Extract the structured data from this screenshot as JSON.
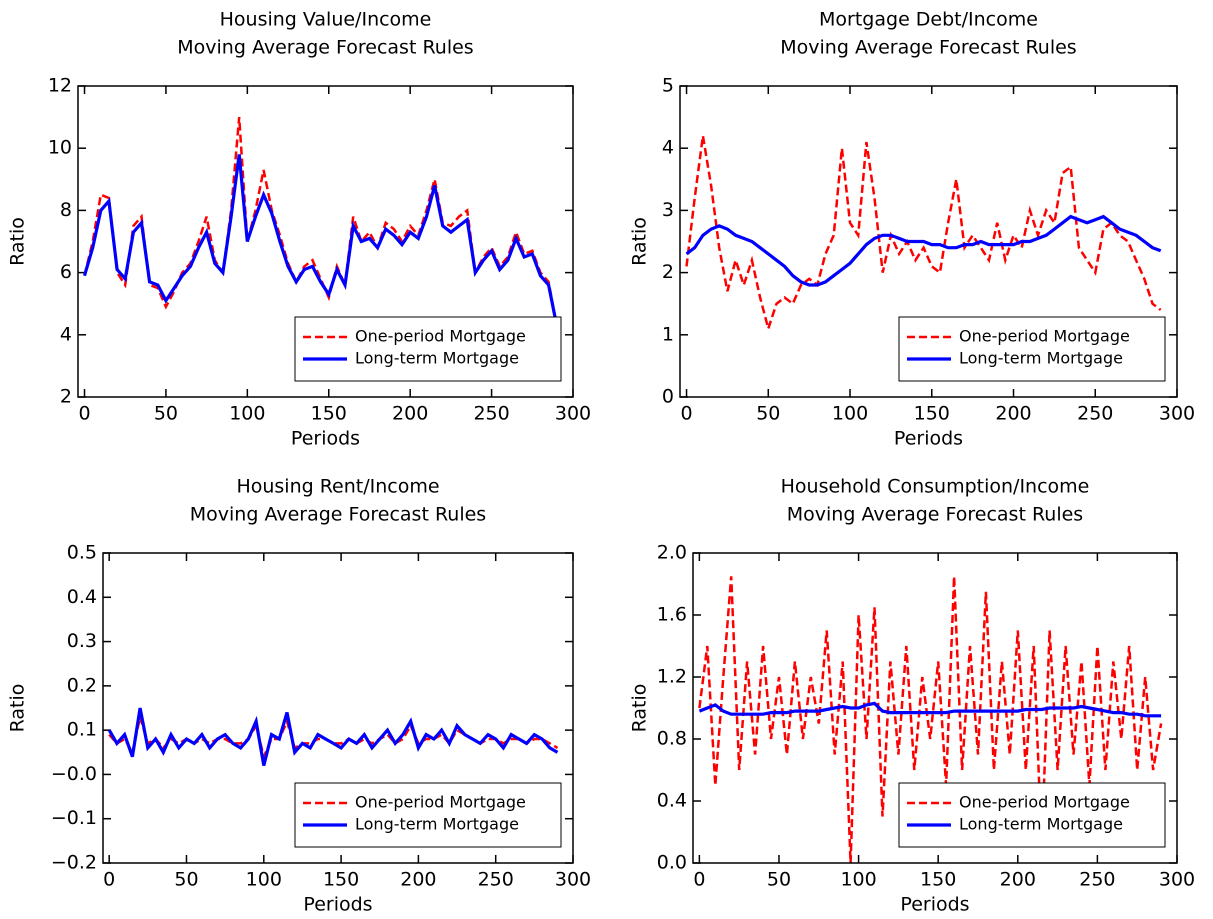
{
  "chart_data": [
    {
      "type": "line",
      "title": "Housing Value/Income",
      "subtitle": "Moving Average Forecast Rules",
      "xlabel": "Periods",
      "ylabel": "Ratio",
      "x": [
        0,
        5,
        10,
        15,
        20,
        25,
        30,
        35,
        40,
        45,
        50,
        55,
        60,
        65,
        70,
        75,
        80,
        85,
        90,
        95,
        100,
        105,
        110,
        115,
        120,
        125,
        130,
        135,
        140,
        145,
        150,
        155,
        160,
        165,
        170,
        175,
        180,
        185,
        190,
        195,
        200,
        205,
        210,
        215,
        220,
        225,
        230,
        235,
        240,
        245,
        250,
        255,
        260,
        265,
        270,
        275,
        280,
        285,
        290
      ],
      "series": [
        {
          "name": "One-period Mortgage",
          "color": "#ff0000",
          "dashed": true,
          "values": [
            5.9,
            7.0,
            8.5,
            8.4,
            6.0,
            5.6,
            7.5,
            7.8,
            5.6,
            5.5,
            4.9,
            5.4,
            6.0,
            6.3,
            7.0,
            7.8,
            6.4,
            6.0,
            8.0,
            11.0,
            7.0,
            8.0,
            9.3,
            8.0,
            7.2,
            6.3,
            5.7,
            6.2,
            6.4,
            5.8,
            5.2,
            6.2,
            5.6,
            7.8,
            7.0,
            7.3,
            6.8,
            7.6,
            7.4,
            7.0,
            7.5,
            7.2,
            8.0,
            9.0,
            7.6,
            7.5,
            7.8,
            8.0,
            6.0,
            6.5,
            6.8,
            6.2,
            6.5,
            7.3,
            6.6,
            6.7,
            6.0,
            5.7,
            4.3
          ]
        },
        {
          "name": "Long-term Mortgage",
          "color": "#0000ff",
          "dashed": false,
          "values": [
            5.9,
            6.8,
            8.0,
            8.3,
            6.1,
            5.8,
            7.3,
            7.6,
            5.7,
            5.6,
            5.1,
            5.5,
            5.9,
            6.2,
            6.8,
            7.3,
            6.3,
            6.0,
            7.8,
            9.8,
            7.0,
            7.8,
            8.5,
            7.9,
            7.0,
            6.2,
            5.7,
            6.1,
            6.2,
            5.7,
            5.3,
            6.1,
            5.6,
            7.5,
            7.0,
            7.1,
            6.8,
            7.4,
            7.2,
            6.9,
            7.3,
            7.1,
            7.8,
            8.8,
            7.5,
            7.3,
            7.5,
            7.7,
            6.0,
            6.4,
            6.7,
            6.1,
            6.4,
            7.1,
            6.5,
            6.6,
            5.9,
            5.6,
            4.3
          ]
        }
      ],
      "xlim": [
        -4,
        300
      ],
      "xticks": [
        0,
        50,
        100,
        150,
        200,
        250,
        300
      ],
      "ylim": [
        2,
        12
      ],
      "yticks": [
        2,
        4,
        6,
        8,
        10,
        12
      ],
      "legend": "lower right"
    },
    {
      "type": "line",
      "title": "Mortgage Debt/Income",
      "subtitle": "Moving Average Forecast Rules",
      "xlabel": "Periods",
      "ylabel": "Ratio",
      "x": [
        0,
        5,
        10,
        15,
        20,
        25,
        30,
        35,
        40,
        45,
        50,
        55,
        60,
        65,
        70,
        75,
        80,
        85,
        90,
        95,
        100,
        105,
        110,
        115,
        120,
        125,
        130,
        135,
        140,
        145,
        150,
        155,
        160,
        165,
        170,
        175,
        180,
        185,
        190,
        195,
        200,
        205,
        210,
        215,
        220,
        225,
        230,
        235,
        240,
        245,
        250,
        255,
        260,
        265,
        270,
        275,
        280,
        285,
        290
      ],
      "series": [
        {
          "name": "One-period Mortgage",
          "color": "#ff0000",
          "dashed": true,
          "values": [
            2.1,
            3.2,
            4.2,
            3.4,
            2.4,
            1.7,
            2.2,
            1.8,
            2.2,
            1.6,
            1.1,
            1.5,
            1.6,
            1.5,
            1.8,
            1.9,
            1.8,
            2.3,
            2.6,
            4.0,
            2.8,
            2.6,
            4.1,
            3.2,
            2.0,
            2.6,
            2.3,
            2.5,
            2.2,
            2.4,
            2.1,
            2.0,
            2.8,
            3.5,
            2.4,
            2.6,
            2.4,
            2.2,
            2.8,
            2.2,
            2.6,
            2.4,
            3.0,
            2.6,
            3.0,
            2.8,
            3.6,
            3.7,
            2.4,
            2.2,
            2.0,
            2.7,
            2.8,
            2.6,
            2.5,
            2.2,
            1.9,
            1.5,
            1.4
          ]
        },
        {
          "name": "Long-term Mortgage",
          "color": "#0000ff",
          "dashed": false,
          "values": [
            2.3,
            2.4,
            2.6,
            2.7,
            2.75,
            2.7,
            2.6,
            2.55,
            2.5,
            2.4,
            2.3,
            2.2,
            2.1,
            1.95,
            1.85,
            1.8,
            1.8,
            1.85,
            1.95,
            2.05,
            2.15,
            2.3,
            2.45,
            2.55,
            2.6,
            2.6,
            2.55,
            2.5,
            2.5,
            2.5,
            2.45,
            2.45,
            2.4,
            2.4,
            2.45,
            2.45,
            2.5,
            2.45,
            2.45,
            2.45,
            2.45,
            2.5,
            2.5,
            2.55,
            2.6,
            2.7,
            2.8,
            2.9,
            2.85,
            2.8,
            2.85,
            2.9,
            2.8,
            2.7,
            2.65,
            2.6,
            2.5,
            2.4,
            2.35
          ]
        }
      ],
      "xlim": [
        -4,
        300
      ],
      "xticks": [
        0,
        50,
        100,
        150,
        200,
        250,
        300
      ],
      "ylim": [
        0,
        5
      ],
      "yticks": [
        0,
        1,
        2,
        3,
        4,
        5
      ],
      "legend": "lower right"
    },
    {
      "type": "line",
      "title": "Housing Rent/Income",
      "subtitle": "Moving Average Forecast Rules",
      "xlabel": "Periods",
      "ylabel": "Ratio",
      "x": [
        0,
        5,
        10,
        15,
        20,
        25,
        30,
        35,
        40,
        45,
        50,
        55,
        60,
        65,
        70,
        75,
        80,
        85,
        90,
        95,
        100,
        105,
        110,
        115,
        120,
        125,
        130,
        135,
        140,
        145,
        150,
        155,
        160,
        165,
        170,
        175,
        180,
        185,
        190,
        195,
        200,
        205,
        210,
        215,
        220,
        225,
        230,
        235,
        240,
        245,
        250,
        255,
        260,
        265,
        270,
        275,
        280,
        285,
        290
      ],
      "series": [
        {
          "name": "One-period Mortgage",
          "color": "#ff0000",
          "dashed": true,
          "values": [
            0.09,
            0.07,
            0.08,
            0.05,
            0.13,
            0.07,
            0.08,
            0.06,
            0.08,
            0.07,
            0.08,
            0.07,
            0.08,
            0.07,
            0.08,
            0.08,
            0.07,
            0.07,
            0.08,
            0.11,
            0.04,
            0.08,
            0.08,
            0.12,
            0.06,
            0.07,
            0.07,
            0.08,
            0.08,
            0.07,
            0.07,
            0.08,
            0.07,
            0.08,
            0.07,
            0.08,
            0.09,
            0.07,
            0.08,
            0.11,
            0.07,
            0.08,
            0.08,
            0.09,
            0.07,
            0.1,
            0.09,
            0.08,
            0.07,
            0.08,
            0.08,
            0.07,
            0.08,
            0.08,
            0.07,
            0.08,
            0.08,
            0.07,
            0.06
          ]
        },
        {
          "name": "Long-term Mortgage",
          "color": "#0000ff",
          "dashed": false,
          "values": [
            0.1,
            0.07,
            0.09,
            0.04,
            0.15,
            0.06,
            0.08,
            0.05,
            0.09,
            0.06,
            0.08,
            0.07,
            0.09,
            0.06,
            0.08,
            0.09,
            0.07,
            0.06,
            0.08,
            0.12,
            0.02,
            0.09,
            0.08,
            0.14,
            0.05,
            0.07,
            0.06,
            0.09,
            0.08,
            0.07,
            0.06,
            0.08,
            0.07,
            0.09,
            0.06,
            0.08,
            0.1,
            0.07,
            0.09,
            0.12,
            0.06,
            0.09,
            0.08,
            0.1,
            0.07,
            0.11,
            0.09,
            0.08,
            0.07,
            0.09,
            0.08,
            0.06,
            0.09,
            0.08,
            0.07,
            0.09,
            0.08,
            0.06,
            0.05
          ]
        }
      ],
      "xlim": [
        -4,
        300
      ],
      "xticks": [
        0,
        50,
        100,
        150,
        200,
        250,
        300
      ],
      "ylim": [
        -0.2,
        0.5
      ],
      "yticks": [
        {
          "value": -0.2,
          "label": "−0.2"
        },
        {
          "value": -0.1,
          "label": "−0.1"
        },
        {
          "value": 0,
          "label": "−0.0"
        },
        0.1,
        0.2,
        0.3,
        0.4,
        0.5
      ],
      "legend": "lower right"
    },
    {
      "type": "line",
      "title": "Household Consumption/Income",
      "subtitle": "Moving Average Forecast Rules",
      "xlabel": "Periods",
      "ylabel": "Ratio",
      "x": [
        0,
        5,
        10,
        15,
        20,
        25,
        30,
        35,
        40,
        45,
        50,
        55,
        60,
        65,
        70,
        75,
        80,
        85,
        90,
        95,
        100,
        105,
        110,
        115,
        120,
        125,
        130,
        135,
        140,
        145,
        150,
        155,
        160,
        165,
        170,
        175,
        180,
        185,
        190,
        195,
        200,
        205,
        210,
        215,
        220,
        225,
        230,
        235,
        240,
        245,
        250,
        255,
        260,
        265,
        270,
        275,
        280,
        285,
        290
      ],
      "series": [
        {
          "name": "One-period Mortgage",
          "color": "#ff0000",
          "dashed": true,
          "values": [
            1.0,
            1.4,
            0.5,
            1.2,
            1.85,
            0.6,
            1.3,
            0.7,
            1.4,
            0.8,
            1.2,
            0.7,
            1.3,
            0.8,
            1.2,
            0.9,
            1.5,
            0.7,
            1.3,
            0.0,
            1.6,
            0.8,
            1.65,
            0.3,
            1.3,
            0.7,
            1.4,
            0.6,
            1.2,
            0.8,
            1.3,
            0.5,
            1.85,
            0.6,
            1.4,
            0.7,
            1.75,
            0.6,
            1.3,
            0.7,
            1.5,
            0.6,
            1.4,
            0.1,
            1.5,
            0.6,
            1.4,
            0.7,
            1.3,
            0.5,
            1.4,
            0.6,
            1.3,
            0.8,
            1.4,
            0.6,
            1.2,
            0.6,
            0.9
          ]
        },
        {
          "name": "Long-term Mortgage",
          "color": "#0000ff",
          "dashed": false,
          "values": [
            0.98,
            1.0,
            1.02,
            0.98,
            0.96,
            0.96,
            0.96,
            0.96,
            0.96,
            0.97,
            0.97,
            0.97,
            0.98,
            0.98,
            0.98,
            0.98,
            0.99,
            1.0,
            1.01,
            1.0,
            1.0,
            1.02,
            1.03,
            0.98,
            0.97,
            0.97,
            0.97,
            0.97,
            0.97,
            0.97,
            0.97,
            0.97,
            0.98,
            0.98,
            0.98,
            0.98,
            0.98,
            0.98,
            0.98,
            0.98,
            0.98,
            0.99,
            0.99,
            0.99,
            1.0,
            1.0,
            1.0,
            1.0,
            1.01,
            1.0,
            0.99,
            0.98,
            0.97,
            0.97,
            0.96,
            0.96,
            0.95,
            0.95,
            0.95
          ]
        }
      ],
      "xlim": [
        -4,
        300
      ],
      "xticks": [
        0,
        50,
        100,
        150,
        200,
        250,
        300
      ],
      "ylim": [
        0,
        2
      ],
      "yticks": [
        {
          "value": 0,
          "label": "0.0"
        },
        0.4,
        0.8,
        1.2,
        1.6,
        {
          "value": 2,
          "label": "2.0"
        }
      ],
      "legend": "lower right"
    }
  ]
}
